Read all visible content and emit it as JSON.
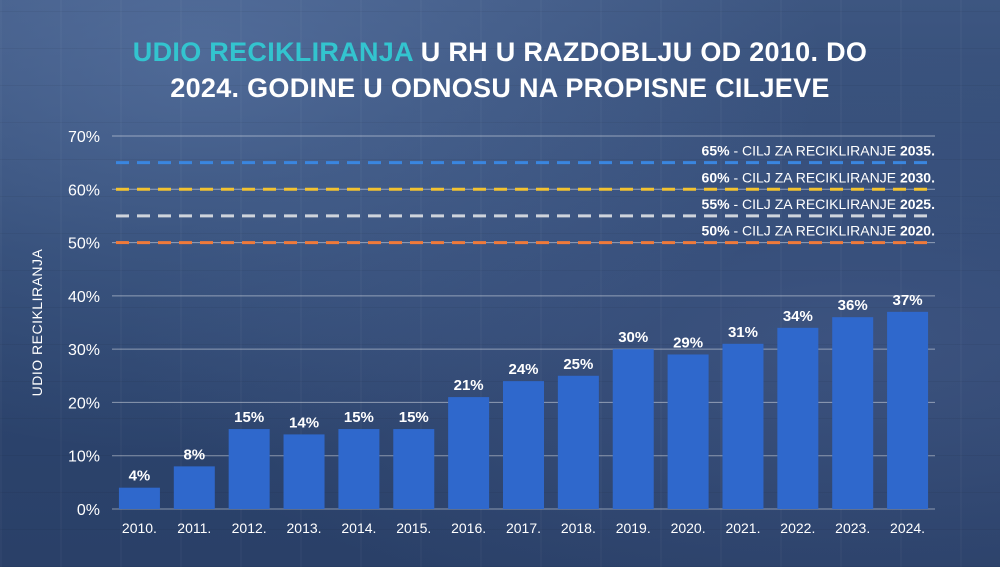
{
  "title": {
    "highlight": "UDIO RECIKLIRANJA",
    "line1_rest": " U RH U RAZDOBLJU OD 2010. DO",
    "line2": "2024. GODINE U ODNOSU NA PROPISNE CILJEVE"
  },
  "colors": {
    "highlight": "#33c4cf",
    "bar": "#2f68cc"
  },
  "chart_data": {
    "type": "bar",
    "ylabel": "UDIO RECIKLIRANJA",
    "ylim": [
      0,
      70
    ],
    "yticks": [
      "0%",
      "10%",
      "20%",
      "30%",
      "40%",
      "50%",
      "60%",
      "70%"
    ],
    "grid": true,
    "categories": [
      "2010.",
      "2011.",
      "2012.",
      "2013.",
      "2014.",
      "2015.",
      "2016.",
      "2017.",
      "2018.",
      "2019.",
      "2020.",
      "2021.",
      "2022.",
      "2023.",
      "2024."
    ],
    "values": [
      4,
      8,
      15,
      14,
      15,
      15,
      21,
      24,
      25,
      30,
      29,
      31,
      34,
      36,
      37
    ],
    "value_labels": [
      "4%",
      "8%",
      "15%",
      "14%",
      "15%",
      "15%",
      "21%",
      "24%",
      "25%",
      "30%",
      "29%",
      "31%",
      "34%",
      "36%",
      "37%"
    ],
    "targets": [
      {
        "value": 65,
        "pct": "65%",
        "text": " - CILJ ZA RECIKLIRANJE ",
        "year": "2035.",
        "color": "#3a86e0"
      },
      {
        "value": 60,
        "pct": "60%",
        "text": " - CILJ ZA RECIKLIRANJE ",
        "year": "2030.",
        "color": "#f2c230"
      },
      {
        "value": 55,
        "pct": "55%",
        "text": " - CILJ ZA RECIKLIRANJE ",
        "year": "2025.",
        "color": "#cfd4dc"
      },
      {
        "value": 50,
        "pct": "50%",
        "text": " - CILJ ZA RECIKLIRANJE ",
        "year": "2020.",
        "color": "#f07a3a"
      }
    ]
  }
}
